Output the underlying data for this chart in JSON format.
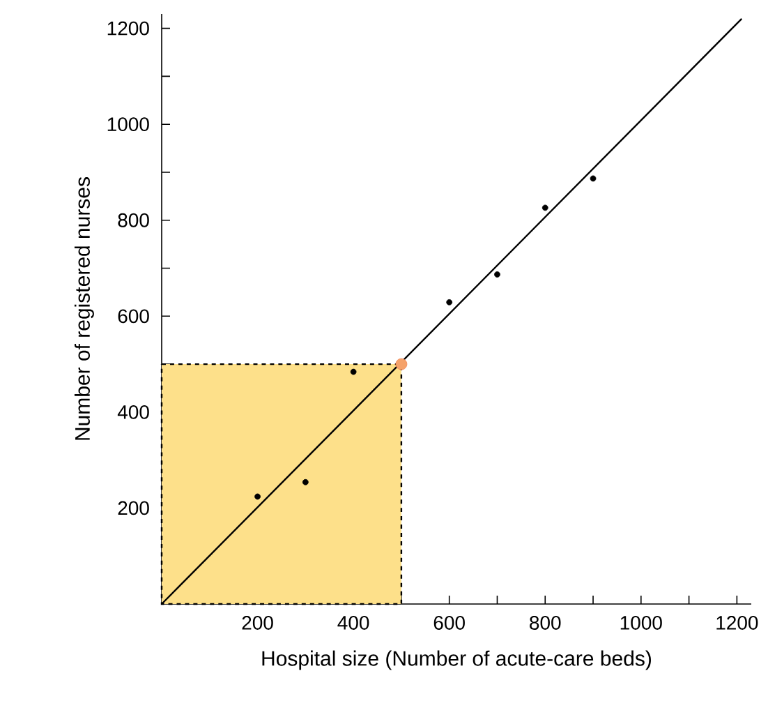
{
  "chart_data": {
    "type": "scatter",
    "xlabel": "Hospital size (Number of acute-care beds)",
    "ylabel": "Number of registered nurses",
    "xlim": [
      0,
      1230
    ],
    "ylim": [
      0,
      1230
    ],
    "xticks": [
      {
        "value": 100,
        "label": null
      },
      200,
      {
        "value": 300,
        "label": null
      },
      400,
      {
        "value": 500,
        "label": null
      },
      600,
      {
        "value": 700,
        "label": null
      },
      800,
      {
        "value": 900,
        "label": null
      },
      1000,
      {
        "value": 1100,
        "label": null
      },
      1200
    ],
    "yticks": [
      {
        "value": 100,
        "label": null
      },
      200,
      {
        "value": 300,
        "label": null
      },
      400,
      {
        "value": 500,
        "label": null
      },
      600,
      {
        "value": 700,
        "label": null
      },
      800,
      {
        "value": 900,
        "label": null
      },
      1000,
      {
        "value": 1100,
        "label": null
      },
      1200
    ],
    "series": [
      {
        "type": "area",
        "color": "#fde08a",
        "line_style": "dashed",
        "x": [
          0,
          500
        ],
        "values": [
          500,
          500
        ]
      },
      {
        "type": "line",
        "color": "#000000",
        "x": [
          0,
          1210
        ],
        "values": [
          0,
          1220
        ]
      },
      {
        "type": "scatter",
        "color": "#000000",
        "marker": "circle",
        "x": [
          200,
          300,
          400,
          600,
          700,
          800,
          900
        ],
        "values": [
          224,
          254,
          484,
          629,
          687,
          826,
          887
        ]
      },
      {
        "type": "scatter",
        "color": "#f5a26a",
        "marker": "circle",
        "x": [
          500
        ],
        "values": [
          500
        ]
      }
    ]
  }
}
